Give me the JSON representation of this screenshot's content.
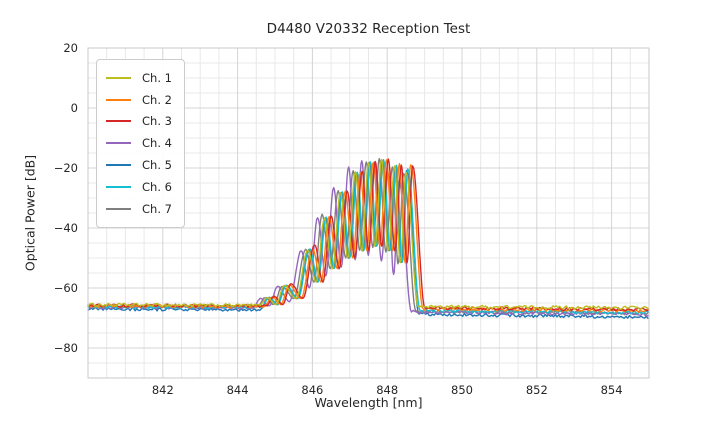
{
  "chart_data": {
    "type": "line",
    "title": "D4480 V20332 Reception Test",
    "xlabel": "Wavelength [nm]",
    "ylabel": "Optical Power [dB]",
    "xlim": [
      840,
      855
    ],
    "ylim": [
      -90,
      20
    ],
    "x_ticks": [
      842,
      844,
      846,
      848,
      850,
      852,
      854
    ],
    "y_ticks": [
      20,
      0,
      -20,
      -40,
      -60,
      -80
    ],
    "x_minor_step_nm": 0.5,
    "y_minor_step_db": 5,
    "grid": "major+minor",
    "legend_position": "upper-left",
    "noise_floor_db": -66.5,
    "peak_region_nm": [
      844.6,
      848.9
    ],
    "lobe_x_nm": [
      844.8,
      845.25,
      845.88,
      846.32,
      846.75,
      847.15,
      847.5,
      847.85,
      848.2,
      848.5
    ],
    "series": [
      {
        "name": "Ch. 1",
        "color": "#bcbd22",
        "shift_nm": 0.0,
        "peaks_db": [
          -63.2,
          -59.2,
          -47.3,
          -36.8,
          -28.2,
          -21.3,
          -18.3,
          -17.1,
          -19.3,
          -21.5
        ],
        "valleys_db": [
          -65.5,
          -63.5,
          -58.0,
          -53.5,
          -50.0,
          -47.5,
          -46.0,
          -47.5,
          -51.5
        ],
        "baseline_left_db": [
          -65.6,
          -65.8
        ],
        "baseline_right_db": [
          -66.2,
          -66.6
        ]
      },
      {
        "name": "Ch. 2",
        "color": "#ff7f0e",
        "shift_nm": 0.13,
        "peaks_db": [
          -63.0,
          -59.0,
          -47.0,
          -36.3,
          -27.8,
          -21.6,
          -18.1,
          -17.4,
          -18.6,
          -18.8
        ],
        "valleys_db": [
          -65.5,
          -63.5,
          -58.0,
          -53.5,
          -50.0,
          -47.5,
          -46.0,
          -47.5,
          -51.5
        ],
        "baseline_left_db": [
          -66.0,
          -66.2
        ],
        "baseline_right_db": [
          -66.9,
          -67.6
        ]
      },
      {
        "name": "Ch. 3",
        "color": "#d62728",
        "shift_nm": 0.18,
        "peaks_db": [
          -62.8,
          -58.6,
          -45.6,
          -36.0,
          -27.7,
          -21.2,
          -17.8,
          -17.0,
          -19.2,
          -19.3
        ],
        "valleys_db": [
          -65.5,
          -63.5,
          -58.0,
          -53.5,
          -50.0,
          -47.5,
          -46.0,
          -47.5,
          -51.5
        ],
        "baseline_left_db": [
          -65.8,
          -66.0
        ],
        "baseline_right_db": [
          -66.6,
          -67.2
        ]
      },
      {
        "name": "Ch. 4",
        "color": "#9467bd",
        "shift_nm": -0.18,
        "peaks_db": [
          -63.5,
          -59.5,
          -47.5,
          -36.5,
          -26.5,
          -19.6,
          -17.6,
          -18.3,
          -21.5,
          -24.5
        ],
        "valleys_db": [
          -66.0,
          -64.5,
          -60.0,
          -56.0,
          -53.0,
          -50.5,
          -49.0,
          -51.0,
          -55.5
        ],
        "baseline_left_db": [
          -66.5,
          -66.6
        ],
        "baseline_right_db": [
          -68.0,
          -68.8
        ]
      },
      {
        "name": "Ch. 5",
        "color": "#1f77b4",
        "shift_nm": 0.02,
        "peaks_db": [
          -63.3,
          -59.3,
          -47.2,
          -36.7,
          -28.3,
          -21.7,
          -18.2,
          -17.6,
          -19.4,
          -20.9
        ],
        "valleys_db": [
          -65.5,
          -63.5,
          -58.0,
          -53.5,
          -50.0,
          -47.5,
          -46.0,
          -47.5,
          -51.5
        ],
        "baseline_left_db": [
          -67.1,
          -67.2
        ],
        "baseline_right_db": [
          -68.7,
          -69.8
        ]
      },
      {
        "name": "Ch. 6",
        "color": "#17becf",
        "shift_nm": 0.05,
        "peaks_db": [
          -63.1,
          -59.1,
          -46.9,
          -36.4,
          -27.9,
          -21.4,
          -17.9,
          -17.2,
          -19.1,
          -20.3
        ],
        "valleys_db": [
          -65.5,
          -63.5,
          -58.0,
          -53.5,
          -50.0,
          -47.5,
          -46.0,
          -47.5,
          -51.5
        ],
        "baseline_left_db": [
          -66.3,
          -66.4
        ],
        "baseline_right_db": [
          -67.5,
          -68.2
        ]
      },
      {
        "name": "Ch. 7",
        "color": "#7f7f7f",
        "shift_nm": -0.06,
        "peaks_db": [
          -63.2,
          -59.4,
          -47.1,
          -35.5,
          -27.6,
          -21.0,
          -18.0,
          -17.0,
          -19.6,
          -21.8
        ],
        "valleys_db": [
          -65.5,
          -63.5,
          -58.0,
          -53.5,
          -50.0,
          -47.5,
          -46.5,
          -48.0,
          -52.0
        ],
        "baseline_left_db": [
          -66.2,
          -66.3
        ],
        "baseline_right_db": [
          -67.8,
          -68.4
        ]
      }
    ],
    "colors": {
      "text": "#262626",
      "grid_major": "#d4d4d4",
      "grid_minor": "#e8e8e8",
      "spine": "#c9c9c9",
      "background": "#ffffff"
    }
  }
}
